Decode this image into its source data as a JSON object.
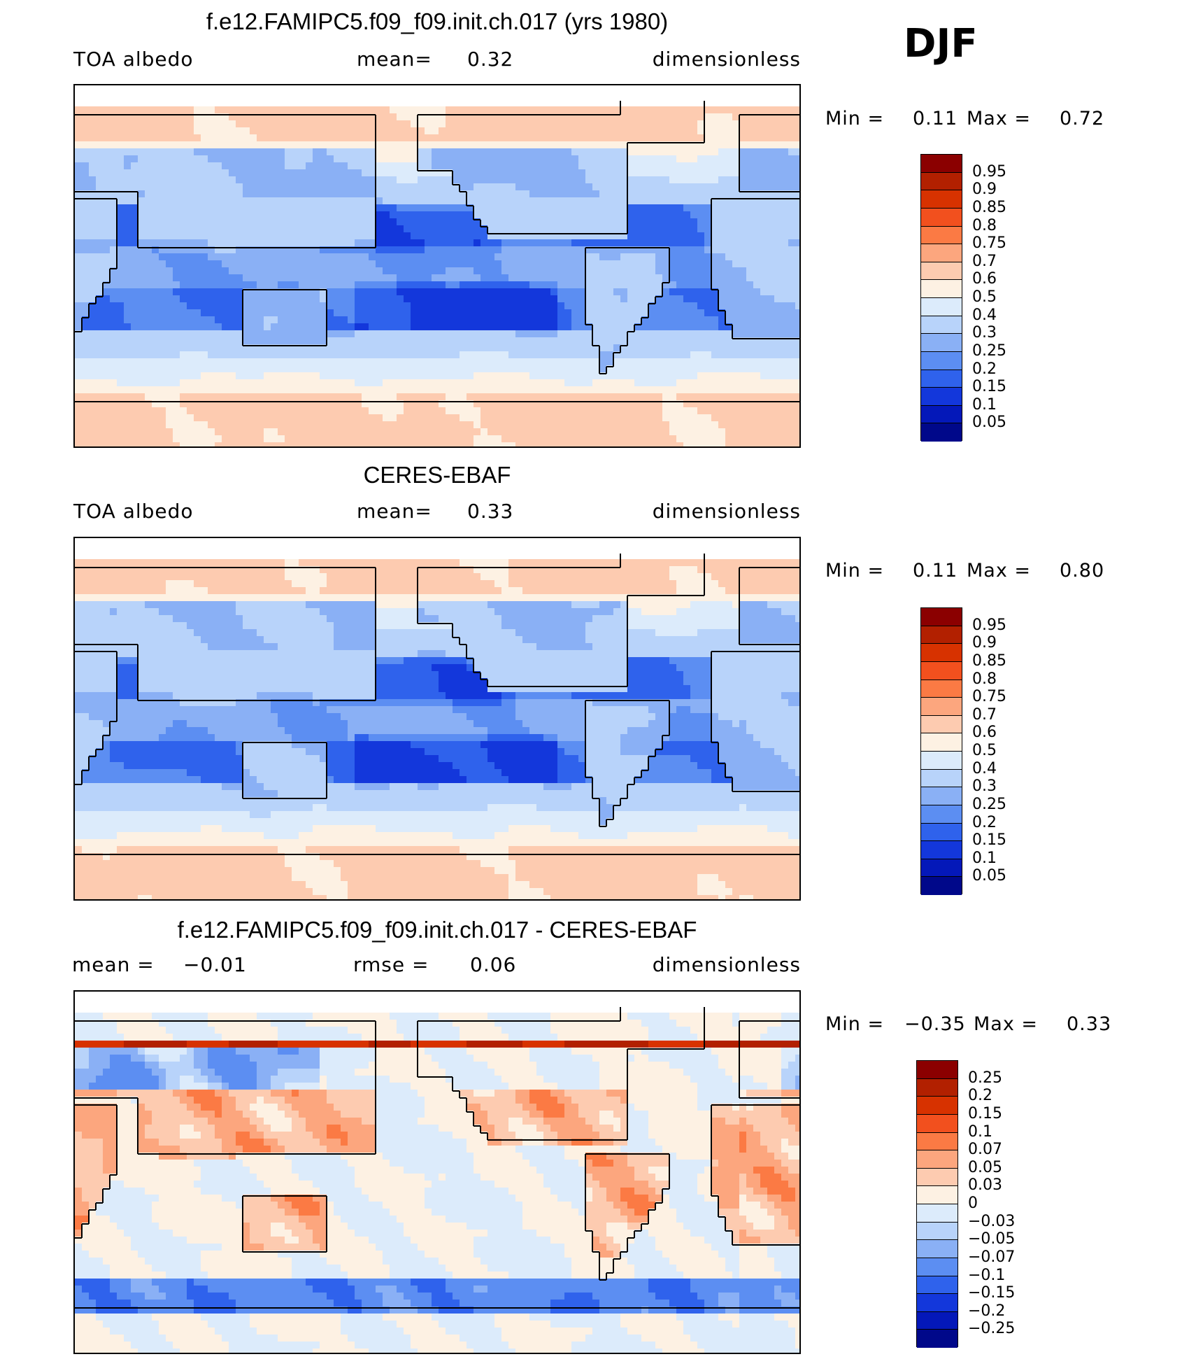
{
  "season": "DJF",
  "panels": [
    {
      "title": "f.e12.FAMIPC5.f09_f09.init.ch.017 (yrs 1980)",
      "left_label": "TOA  albedo",
      "mid_label": "mean=",
      "mid_value": "0.32",
      "right_label": "dimensionless",
      "min_label": "Min  =",
      "min_value": "0.11",
      "max_label": "Max  =",
      "max_value": "0.72",
      "type": "abs"
    },
    {
      "title": "CERES-EBAF",
      "left_label": "TOA  albedo",
      "mid_label": "mean=",
      "mid_value": "0.33",
      "right_label": "dimensionless",
      "min_label": "Min  =",
      "min_value": "0.11",
      "max_label": "Max  =",
      "max_value": "0.80",
      "type": "abs"
    },
    {
      "title": "f.e12.FAMIPC5.f09_f09.init.ch.017 - CERES-EBAF",
      "left_label": "mean  =",
      "left_value": "−0.01",
      "mid_label": "rmse  =",
      "mid_value": "0.06",
      "right_label": "dimensionless",
      "min_label": "Min  =",
      "min_value": "−0.35",
      "max_label": "Max  =",
      "max_value": "0.33",
      "type": "diff"
    }
  ],
  "colorbars": {
    "abs": {
      "labels": [
        "0.95",
        "0.9",
        "0.85",
        "0.8",
        "0.75",
        "0.7",
        "0.6",
        "0.5",
        "0.4",
        "0.3",
        "0.25",
        "0.2",
        "0.15",
        "0.1",
        "0.05"
      ],
      "colors": [
        "#8b0000",
        "#b22000",
        "#d73200",
        "#f2501e",
        "#fb7a44",
        "#fca67e",
        "#fdcbb0",
        "#fdf1e3",
        "#dcebfb",
        "#b8d3fa",
        "#8ab0f5",
        "#5c8ef2",
        "#2f62ec",
        "#1337db",
        "#0418b9",
        "#00088a"
      ]
    },
    "diff": {
      "labels": [
        "0.25",
        "0.2",
        "0.15",
        "0.1",
        "0.07",
        "0.05",
        "0.03",
        "0",
        "−0.03",
        "−0.05",
        "−0.07",
        "−0.1",
        "−0.15",
        "−0.2",
        "−0.25"
      ],
      "colors": [
        "#8b0000",
        "#b22000",
        "#d73200",
        "#f2501e",
        "#fb7a44",
        "#fca67e",
        "#fdcbb0",
        "#fdf1e3",
        "#dcebfb",
        "#b8d3fa",
        "#8ab0f5",
        "#5c8ef2",
        "#2f62ec",
        "#1337db",
        "#0418b9",
        "#00088a"
      ]
    }
  },
  "chart_data": [
    {
      "type": "heatmap",
      "title": "f.e12.FAMIPC5.f09_f09.init.ch.017 (yrs 1980)",
      "variable": "TOA  albedo",
      "units": "dimensionless",
      "mean": 0.32,
      "min": 0.11,
      "max": 0.72,
      "levels": [
        0.05,
        0.1,
        0.15,
        0.2,
        0.25,
        0.3,
        0.4,
        0.5,
        0.6,
        0.7,
        0.75,
        0.8,
        0.85,
        0.9,
        0.95
      ]
    },
    {
      "type": "heatmap",
      "title": "CERES-EBAF",
      "variable": "TOA  albedo",
      "units": "dimensionless",
      "mean": 0.33,
      "min": 0.11,
      "max": 0.8,
      "levels": [
        0.05,
        0.1,
        0.15,
        0.2,
        0.25,
        0.3,
        0.4,
        0.5,
        0.6,
        0.7,
        0.75,
        0.8,
        0.85,
        0.9,
        0.95
      ]
    },
    {
      "type": "heatmap",
      "title": "f.e12.FAMIPC5.f09_f09.init.ch.017 - CERES-EBAF",
      "units": "dimensionless",
      "mean": -0.01,
      "rmse": 0.06,
      "min": -0.35,
      "max": 0.33,
      "levels": [
        -0.25,
        -0.2,
        -0.15,
        -0.1,
        -0.07,
        -0.05,
        -0.03,
        0,
        0.03,
        0.05,
        0.07,
        0.1,
        0.15,
        0.2,
        0.25
      ]
    }
  ]
}
